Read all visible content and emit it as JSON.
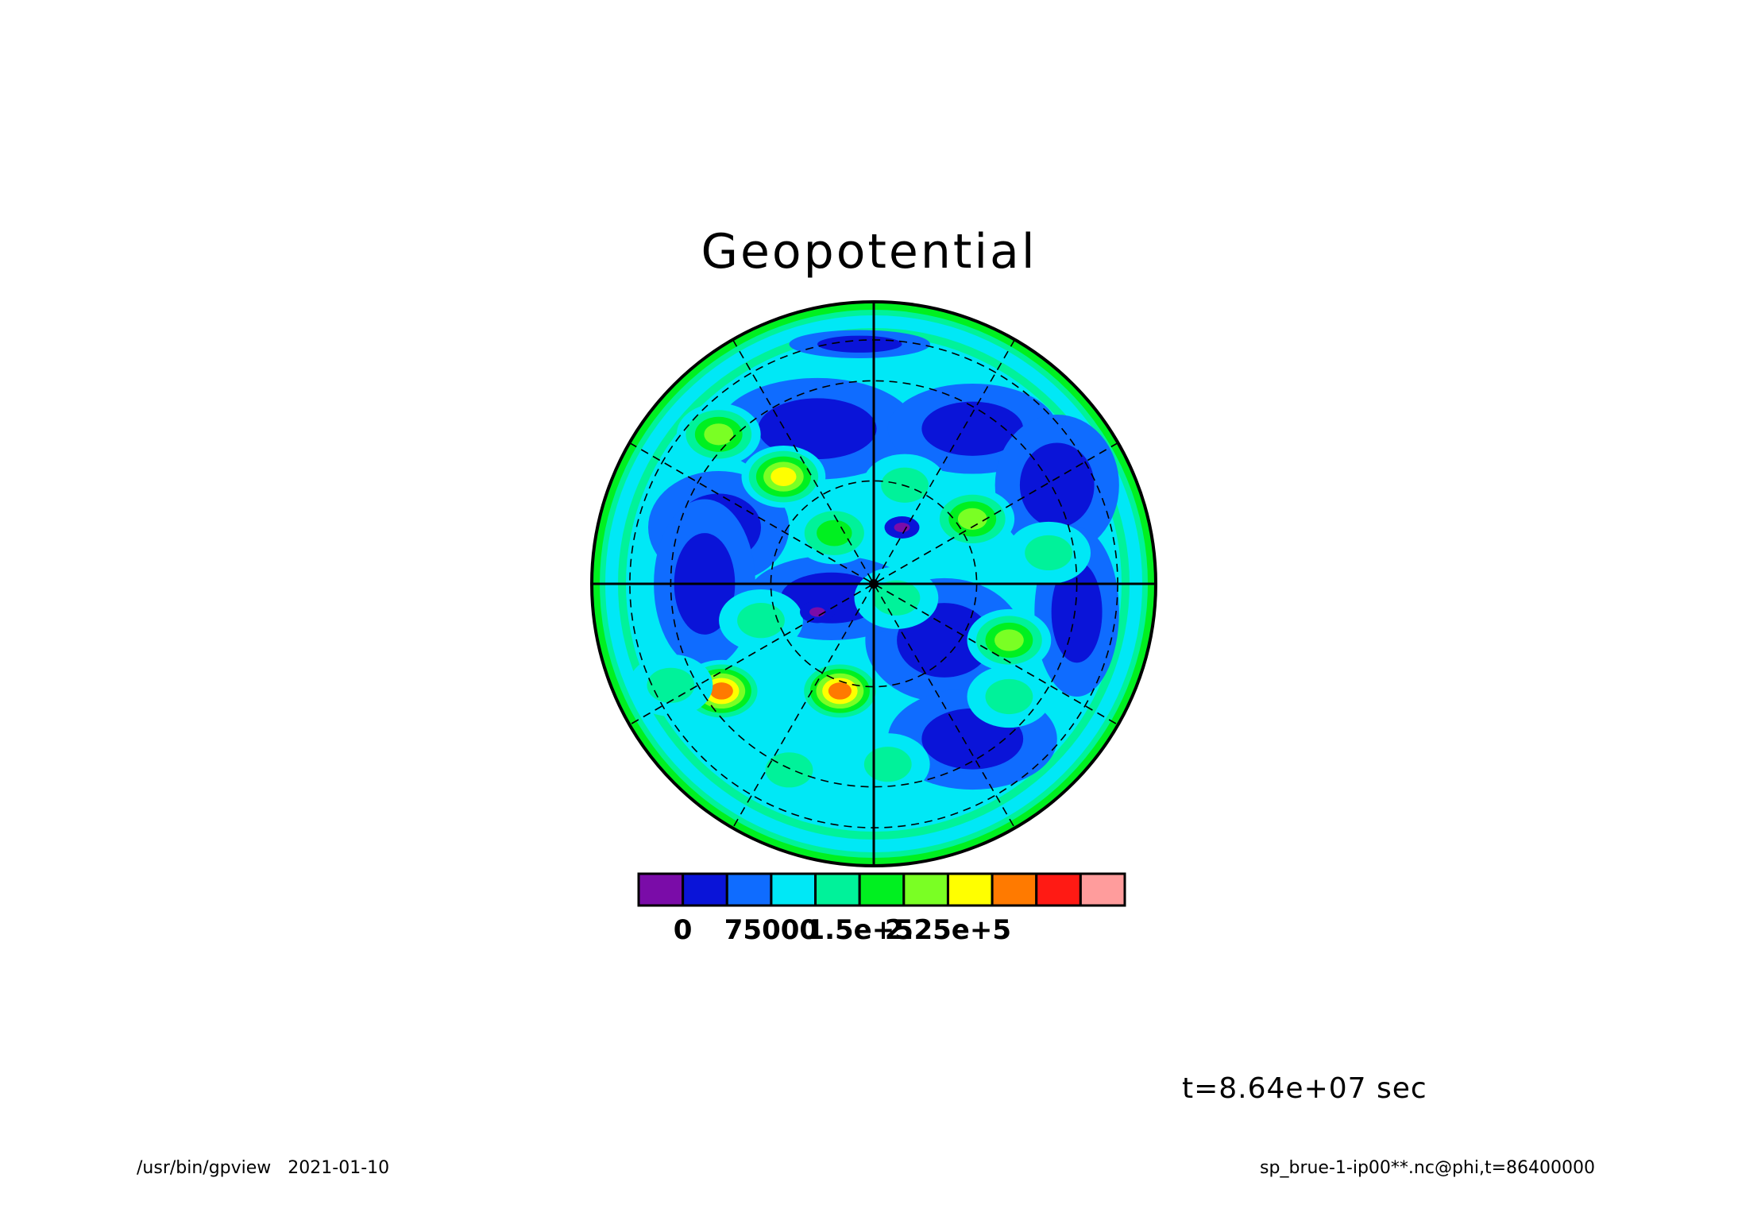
{
  "title": "Geopotential",
  "time_label": "t=8.64e+07 sec",
  "footer": {
    "program": "/usr/bin/gpview",
    "date": "2021-01-10",
    "source": "sp_brue-1-ip00**.nc@phi,t=86400000"
  },
  "chart_data": {
    "type": "heatmap",
    "projection": "polar stereographic",
    "title": "Geopotential",
    "colorbar": {
      "levels": 11,
      "colors": [
        "#7a0ca8",
        "#0a14d8",
        "#0f6cff",
        "#00e8f6",
        "#00f29a",
        "#00f020",
        "#7aff24",
        "#ffff00",
        "#ff7a00",
        "#ff1a14",
        "#ff9c9c"
      ],
      "tick_labels": [
        "0",
        "75000",
        "1.5e+5",
        "2.25e+5"
      ],
      "tick_positions": [
        1,
        3,
        5,
        7
      ]
    },
    "grid": {
      "meridians_solid": 4,
      "meridians_dashed": 12,
      "latitude_circles_dashed": 3
    },
    "features": [
      {
        "x": -0.55,
        "y": 0.53,
        "value": 150000.0
      },
      {
        "x": -0.32,
        "y": 0.38,
        "value": 190000.0
      },
      {
        "x": -0.14,
        "y": 0.18,
        "value": 130000.0
      },
      {
        "x": 0.11,
        "y": 0.35,
        "value": 120000.0
      },
      {
        "x": 0.35,
        "y": 0.23,
        "value": 160000.0
      },
      {
        "x": 0.62,
        "y": 0.11,
        "value": 100000.0
      },
      {
        "x": 0.48,
        "y": -0.2,
        "value": 150000.0
      },
      {
        "x": 0.48,
        "y": -0.4,
        "value": 100000.0
      },
      {
        "x": -0.54,
        "y": -0.38,
        "value": 220000.0
      },
      {
        "x": -0.12,
        "y": -0.38,
        "value": 210000.0
      },
      {
        "x": -0.4,
        "y": -0.13,
        "value": 100000.0
      },
      {
        "x": 0.08,
        "y": -0.05,
        "value": 100000.0
      },
      {
        "x": -0.72,
        "y": -0.36,
        "value": 100000.0
      },
      {
        "x": -0.3,
        "y": -0.66,
        "value": 100000.0
      },
      {
        "x": 0.05,
        "y": -0.64,
        "value": 100000.0
      },
      {
        "x": -0.2,
        "y": -0.1,
        "value": 5000
      },
      {
        "x": 0.1,
        "y": 0.2,
        "value": 5000
      }
    ]
  }
}
